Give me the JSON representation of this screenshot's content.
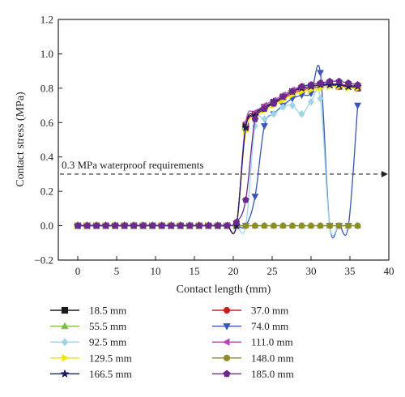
{
  "chart_data": {
    "type": "line",
    "xlabel": "Contact length (mm)",
    "ylabel": "Contact stress (MPa)",
    "xlim": [
      -2.5,
      40
    ],
    "ylim": [
      -0.2,
      1.2
    ],
    "xticks": [
      0,
      5,
      10,
      15,
      20,
      25,
      30,
      35,
      40
    ],
    "yticks": [
      -0.2,
      0.0,
      0.2,
      0.4,
      0.6,
      0.8,
      1.0,
      1.2
    ],
    "ytick_labels": [
      "−0.2",
      "0.0",
      "0.2",
      "0.4",
      "0.6",
      "0.8",
      "1.0",
      "1.2"
    ],
    "grid": false,
    "legend_position": "bottom",
    "annotations": [
      {
        "text": "0.3 MPa waterproof requirements",
        "y": 0.3,
        "x_start": -2.5,
        "x_end": 40,
        "style": "dashed-arrow"
      }
    ],
    "series": [
      {
        "name": "18.5 mm",
        "color": "#1a1a1a",
        "marker": "square",
        "x": [
          0,
          1.2,
          2.4,
          3.6,
          4.8,
          6,
          7.2,
          8.4,
          9.6,
          10.8,
          12,
          13.2,
          14.4,
          15.6,
          16.8,
          18,
          19.2,
          20.4,
          21.6,
          22.8,
          24,
          25.2,
          26.4,
          27.6,
          28.8,
          30,
          31.2,
          32.4,
          33.6,
          34.8,
          36
        ],
        "y": [
          0,
          0,
          0,
          0,
          0,
          0,
          0,
          0,
          0,
          0,
          0,
          0,
          0,
          0,
          0,
          0,
          0,
          0,
          0.58,
          0.65,
          0.69,
          0.72,
          0.75,
          0.78,
          0.8,
          0.81,
          0.82,
          0.82,
          0.81,
          0.81,
          0.8
        ]
      },
      {
        "name": "37.0 mm",
        "color": "#c81e1e",
        "marker": "circle",
        "x": [
          0,
          1.2,
          2.4,
          3.6,
          4.8,
          6,
          7.2,
          8.4,
          9.6,
          10.8,
          12,
          13.2,
          14.4,
          15.6,
          16.8,
          18,
          19.2,
          20.4,
          21.6,
          22.8,
          24,
          25.2,
          26.4,
          27.6,
          28.8,
          30,
          31.2,
          32.4,
          33.6,
          34.8,
          36
        ],
        "y": [
          0,
          0,
          0,
          0,
          0,
          0,
          0,
          0,
          0,
          0,
          0,
          0,
          0,
          0,
          0,
          0,
          0,
          0,
          0.56,
          0.64,
          0.68,
          0.71,
          0.74,
          0.77,
          0.79,
          0.8,
          0.81,
          0.82,
          0.81,
          0.81,
          0.8
        ]
      },
      {
        "name": "55.5 mm",
        "color": "#7fbf3f",
        "marker": "triangle-up",
        "x": [
          0,
          1.2,
          2.4,
          3.6,
          4.8,
          6,
          7.2,
          8.4,
          9.6,
          10.8,
          12,
          13.2,
          14.4,
          15.6,
          16.8,
          18,
          19.2,
          20.4,
          21.6,
          22.8,
          24,
          25.2,
          26.4,
          27.6,
          28.8,
          30,
          31.2,
          32.4,
          33.6,
          34.8,
          36
        ],
        "y": [
          0,
          0,
          0,
          0,
          0,
          0,
          0,
          0,
          0,
          0,
          0,
          0,
          0,
          0,
          0,
          0,
          0,
          0,
          0,
          0,
          0,
          0,
          0,
          0,
          0,
          0,
          0,
          0,
          0,
          0,
          0
        ]
      },
      {
        "name": "74.0 mm",
        "color": "#3a55b4",
        "marker": "triangle-down",
        "x": [
          0,
          1.2,
          2.4,
          3.6,
          4.8,
          6,
          7.2,
          8.4,
          9.6,
          10.8,
          12,
          13.2,
          14.4,
          15.6,
          16.8,
          18,
          19.2,
          20.4,
          21.6,
          22.8,
          24,
          25.2,
          26.4,
          27.6,
          28.8,
          30,
          31.2,
          32.4,
          33.6,
          34.8,
          36
        ],
        "y": [
          0,
          0,
          0,
          0,
          0,
          0,
          0,
          0,
          0,
          0,
          0,
          0,
          0,
          0,
          0,
          0,
          0,
          0,
          0,
          0.17,
          0.58,
          0.65,
          0.7,
          0.74,
          0.76,
          0.77,
          0.89,
          0,
          0,
          0,
          0.7
        ]
      },
      {
        "name": "92.5 mm",
        "color": "#9fd4e8",
        "marker": "diamond",
        "x": [
          0,
          1.2,
          2.4,
          3.6,
          4.8,
          6,
          7.2,
          8.4,
          9.6,
          10.8,
          12,
          13.2,
          14.4,
          15.6,
          16.8,
          18,
          19.2,
          20.4,
          21.6,
          22.8,
          24,
          25.2,
          26.4,
          27.6,
          28.8,
          30,
          31.2,
          32.4,
          33.6,
          34.8,
          36
        ],
        "y": [
          0,
          0,
          0,
          0,
          0,
          0,
          0,
          0,
          0,
          0,
          0,
          0,
          0,
          0,
          0,
          0,
          0,
          0,
          0,
          0.58,
          0.62,
          0.65,
          0.69,
          0.7,
          0.65,
          0.72,
          0.74,
          0,
          0,
          0,
          0
        ]
      },
      {
        "name": "111.0 mm",
        "color": "#b347b3",
        "marker": "triangle-left",
        "x": [
          0,
          1.2,
          2.4,
          3.6,
          4.8,
          6,
          7.2,
          8.4,
          9.6,
          10.8,
          12,
          13.2,
          14.4,
          15.6,
          16.8,
          18,
          19.2,
          20.4,
          21.6,
          22.8,
          24,
          25.2,
          26.4,
          27.6,
          28.8,
          30,
          31.2,
          32.4,
          33.6,
          34.8,
          36
        ],
        "y": [
          0,
          0,
          0,
          0,
          0,
          0,
          0,
          0,
          0,
          0,
          0,
          0,
          0,
          0,
          0,
          0,
          0,
          0,
          0.6,
          0.66,
          0.7,
          0.73,
          0.76,
          0.79,
          0.81,
          0.82,
          0.83,
          0.83,
          0.82,
          0.82,
          0.81
        ]
      },
      {
        "name": "129.5 mm",
        "color": "#f2e600",
        "marker": "triangle-right",
        "x": [
          0,
          1.2,
          2.4,
          3.6,
          4.8,
          6,
          7.2,
          8.4,
          9.6,
          10.8,
          12,
          13.2,
          14.4,
          15.6,
          16.8,
          18,
          19.2,
          20.4,
          21.6,
          22.8,
          24,
          25.2,
          26.4,
          27.6,
          28.8,
          30,
          31.2,
          32.4,
          33.6,
          34.8,
          36
        ],
        "y": [
          0,
          0,
          0,
          0,
          0,
          0,
          0,
          0,
          0,
          0,
          0,
          0,
          0,
          0,
          0,
          0,
          0,
          0,
          0.55,
          0.63,
          0.67,
          0.7,
          0.73,
          0.76,
          0.78,
          0.79,
          0.8,
          0.81,
          0.81,
          0.8,
          0.8
        ]
      },
      {
        "name": "148.0 mm",
        "color": "#8c8c2a",
        "marker": "circle",
        "x": [
          0,
          1.2,
          2.4,
          3.6,
          4.8,
          6,
          7.2,
          8.4,
          9.6,
          10.8,
          12,
          13.2,
          14.4,
          15.6,
          16.8,
          18,
          19.2,
          20.4,
          21.6,
          22.8,
          24,
          25.2,
          26.4,
          27.6,
          28.8,
          30,
          31.2,
          32.4,
          33.6,
          34.8,
          36
        ],
        "y": [
          0,
          0,
          0,
          0,
          0,
          0,
          0,
          0,
          0,
          0,
          0,
          0,
          0,
          0,
          0,
          0,
          0,
          0,
          0,
          0,
          0,
          0,
          0,
          0,
          0,
          0,
          0,
          0,
          0,
          0,
          0
        ]
      },
      {
        "name": "166.5 mm",
        "color": "#1c1c6e",
        "marker": "star",
        "x": [
          0,
          1.2,
          2.4,
          3.6,
          4.8,
          6,
          7.2,
          8.4,
          9.6,
          10.8,
          12,
          13.2,
          14.4,
          15.6,
          16.8,
          18,
          19.2,
          20.4,
          21.6,
          22.8,
          24,
          25.2,
          26.4,
          27.6,
          28.8,
          30,
          31.2,
          32.4,
          33.6,
          34.8,
          36
        ],
        "y": [
          0,
          0,
          0,
          0,
          0,
          0,
          0,
          0,
          0,
          0,
          0,
          0,
          0,
          0,
          0,
          0,
          0,
          0,
          0.57,
          0.64,
          0.68,
          0.72,
          0.75,
          0.78,
          0.8,
          0.81,
          0.82,
          0.82,
          0.82,
          0.81,
          0.81
        ]
      },
      {
        "name": "185.0 mm",
        "color": "#6a2a8c",
        "marker": "pentagon",
        "x": [
          0,
          1.2,
          2.4,
          3.6,
          4.8,
          6,
          7.2,
          8.4,
          9.6,
          10.8,
          12,
          13.2,
          14.4,
          15.6,
          16.8,
          18,
          19.2,
          20.4,
          21.6,
          22.8,
          24,
          25.2,
          26.4,
          27.6,
          28.8,
          30,
          31.2,
          32.4,
          33.6,
          34.8,
          36
        ],
        "y": [
          0,
          0,
          0,
          0,
          0,
          0,
          0,
          0,
          0,
          0,
          0,
          0,
          0,
          0,
          0,
          0,
          0,
          0.02,
          0.15,
          0.62,
          0.68,
          0.71,
          0.75,
          0.78,
          0.81,
          0.82,
          0.83,
          0.84,
          0.84,
          0.83,
          0.82
        ]
      }
    ]
  }
}
